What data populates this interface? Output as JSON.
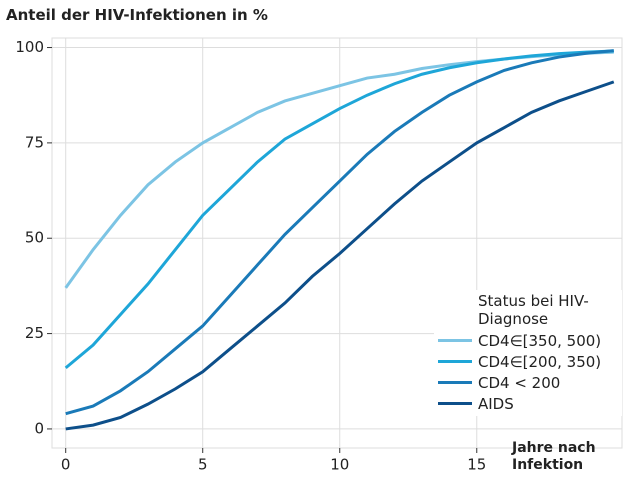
{
  "chart_data": {
    "type": "line",
    "title": "Anteil der HIV-Infektionen in %",
    "x_label": "Jahre nach Infektion",
    "legend_title": "Status bei HIV-Diagnose",
    "x": [
      0,
      1,
      2,
      3,
      4,
      5,
      6,
      7,
      8,
      9,
      10,
      11,
      12,
      13,
      14,
      15,
      16,
      17,
      18,
      19,
      20
    ],
    "series": [
      {
        "name": "CD4∈[350, 500)",
        "color": "#7cc4e4",
        "values": [
          37,
          47,
          56,
          64,
          70,
          75,
          79,
          83,
          86,
          88,
          90,
          92,
          93,
          94.5,
          95.5,
          96.3,
          97,
          97.6,
          98.1,
          98.5,
          98.8
        ]
      },
      {
        "name": "CD4∈[200, 350)",
        "color": "#1ea6d8",
        "values": [
          16,
          22,
          30,
          38,
          47,
          56,
          63,
          70,
          76,
          80,
          84,
          87.5,
          90.5,
          93,
          94.7,
          96,
          97,
          97.8,
          98.4,
          98.8,
          99.1
        ]
      },
      {
        "name": "CD4 < 200",
        "color": "#1a7ab8",
        "values": [
          4,
          6,
          10,
          15,
          21,
          27,
          35,
          43,
          51,
          58,
          65,
          72,
          78,
          83,
          87.5,
          91,
          94,
          96,
          97.5,
          98.5,
          99.2
        ]
      },
      {
        "name": "AIDS",
        "color": "#0d4f8a",
        "values": [
          0,
          1,
          3,
          6.5,
          10.5,
          15,
          21,
          27,
          33,
          40,
          46,
          52.5,
          59,
          65,
          70,
          75,
          79,
          83,
          86,
          88.5,
          91
        ]
      }
    ],
    "xlim": [
      -0.5,
      20.3
    ],
    "ylim": [
      -5,
      102.5
    ],
    "xticks": [
      0,
      5,
      10,
      15
    ],
    "yticks": [
      0,
      25,
      50,
      75,
      100
    ],
    "grid": true,
    "legend": "lower right"
  }
}
